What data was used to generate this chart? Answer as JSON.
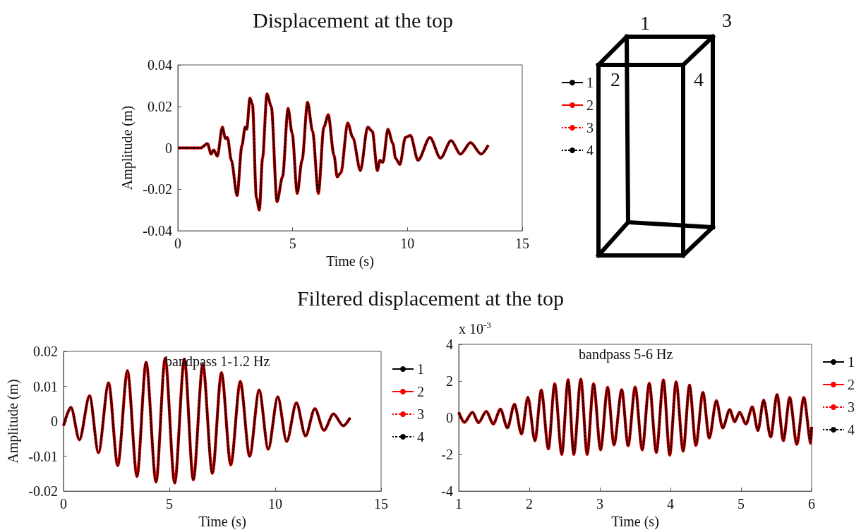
{
  "chart_data": [
    {
      "type": "line",
      "title": "Displacement at the top",
      "xlabel": "Time (s)",
      "ylabel": "Amplitude (m)",
      "xlim": [
        0,
        15
      ],
      "xticks": [
        0,
        5,
        10,
        15
      ],
      "ylim": [
        -0.04,
        0.04
      ],
      "yticks": [
        -0.04,
        -0.02,
        0,
        0.02,
        0.04
      ],
      "legend": "right",
      "grid": false,
      "x": [
        0,
        1.0,
        1.29,
        1.45,
        1.56,
        1.72,
        1.94,
        2.07,
        2.16,
        2.33,
        2.58,
        2.79,
        2.93,
        3.0,
        3.14,
        3.25,
        3.42,
        3.55,
        3.69,
        3.88,
        4.07,
        4.32,
        4.56,
        4.8,
        4.98,
        5.2,
        5.41,
        5.65,
        5.87,
        6.12,
        6.36,
        6.55,
        6.8,
        6.94,
        7.1,
        7.4,
        7.62,
        7.95,
        8.27,
        8.47,
        8.69,
        8.8,
        8.93,
        9.15,
        9.37,
        9.48,
        9.67,
        9.91,
        10.13,
        10.46,
        10.98,
        11.44,
        11.9,
        12.31,
        12.75,
        13.21,
        13.52
      ],
      "series": [
        {
          "name": "1",
          "color": "#000000",
          "line_style": "solid",
          "values": [
            0,
            0,
            0.002,
            -0.003,
            -0.001,
            -0.004,
            0.01,
            0.0045,
            0.005,
            -0.006,
            -0.023,
            0.001,
            0.01,
            0.009,
            0.024,
            0.021,
            -0.024,
            -0.03,
            -0.005,
            0.026,
            0.02,
            -0.026,
            -0.014,
            0.019,
            0.007,
            -0.022,
            -0.006,
            0.022,
            0.008,
            -0.022,
            0.01,
            0.016,
            -0.0035,
            -0.014,
            -0.012,
            0.012,
            0.005,
            -0.011,
            0.01,
            0.008,
            -0.011,
            -0.006,
            -0.007,
            0.009,
            0.002,
            -0.005,
            -0.008,
            0.005,
            0.006,
            -0.006,
            0.005,
            -0.005,
            0.0035,
            -0.003,
            0.0025,
            -0.003,
            0.0013
          ]
        },
        {
          "name": "2",
          "color": "#ff0000",
          "line_style": "solid",
          "values": [
            0,
            0,
            0.002,
            -0.003,
            -0.001,
            -0.004,
            0.01,
            0.0045,
            0.005,
            -0.006,
            -0.023,
            0.001,
            0.01,
            0.009,
            0.024,
            0.021,
            -0.024,
            -0.03,
            -0.005,
            0.026,
            0.02,
            -0.026,
            -0.014,
            0.019,
            0.007,
            -0.022,
            -0.006,
            0.022,
            0.008,
            -0.022,
            0.01,
            0.016,
            -0.0035,
            -0.014,
            -0.012,
            0.012,
            0.005,
            -0.011,
            0.01,
            0.008,
            -0.011,
            -0.006,
            -0.007,
            0.009,
            0.002,
            -0.005,
            -0.008,
            0.005,
            0.006,
            -0.006,
            0.005,
            -0.005,
            0.0035,
            -0.003,
            0.0025,
            -0.003,
            0.0013
          ]
        },
        {
          "name": "3",
          "color": "#ff0000",
          "line_style": "dashed",
          "values": [
            0,
            0,
            0.002,
            -0.003,
            -0.001,
            -0.004,
            0.01,
            0.0045,
            0.005,
            -0.006,
            -0.023,
            0.001,
            0.01,
            0.009,
            0.024,
            0.021,
            -0.024,
            -0.03,
            -0.005,
            0.026,
            0.02,
            -0.026,
            -0.014,
            0.019,
            0.007,
            -0.022,
            -0.006,
            0.022,
            0.008,
            -0.022,
            0.01,
            0.016,
            -0.0035,
            -0.014,
            -0.012,
            0.012,
            0.005,
            -0.011,
            0.01,
            0.008,
            -0.011,
            -0.006,
            -0.007,
            0.009,
            0.002,
            -0.005,
            -0.008,
            0.005,
            0.006,
            -0.006,
            0.005,
            -0.005,
            0.0035,
            -0.003,
            0.0025,
            -0.003,
            0.0013
          ]
        },
        {
          "name": "4",
          "color": "#000000",
          "line_style": "dashed",
          "values": [
            0,
            0,
            0.002,
            -0.003,
            -0.001,
            -0.004,
            0.01,
            0.0045,
            0.005,
            -0.006,
            -0.023,
            0.001,
            0.01,
            0.009,
            0.024,
            0.021,
            -0.024,
            -0.03,
            -0.005,
            0.026,
            0.02,
            -0.026,
            -0.014,
            0.019,
            0.007,
            -0.022,
            -0.006,
            0.022,
            0.008,
            -0.022,
            0.01,
            0.016,
            -0.0035,
            -0.014,
            -0.012,
            0.012,
            0.005,
            -0.011,
            0.01,
            0.008,
            -0.011,
            -0.006,
            -0.007,
            0.009,
            0.002,
            -0.005,
            -0.008,
            0.005,
            0.006,
            -0.006,
            0.005,
            -0.005,
            0.0035,
            -0.003,
            0.0025,
            -0.003,
            0.0013
          ]
        }
      ]
    },
    {
      "type": "line",
      "title": "Filtered displacement at the top",
      "xlabel": "Time (s)",
      "ylabel": "Amplitude (m)",
      "xlim": [
        0,
        15
      ],
      "xticks": [
        0,
        5,
        10,
        15
      ],
      "ylim": [
        -0.02,
        0.02
      ],
      "yticks": [
        -0.02,
        -0.01,
        0,
        0.01,
        0.02
      ],
      "legend": "right",
      "grid": false,
      "annotations": [
        "bandpass 1-1.2 Hz"
      ],
      "x": [
        0,
        0.35,
        0.75,
        1.23,
        1.65,
        2.13,
        2.56,
        3.02,
        3.47,
        3.9,
        4.37,
        4.8,
        5.25,
        5.71,
        6.13,
        6.58,
        7.03,
        7.46,
        7.9,
        8.35,
        8.79,
        9.24,
        9.67,
        10.12,
        10.54,
        11.0,
        11.43,
        11.87,
        12.3,
        12.75,
        13.21,
        13.54
      ],
      "series": [
        {
          "name": "1",
          "color": "#000000",
          "line_style": "solid",
          "values": [
            -0.0013,
            0.004,
            -0.0053,
            0.0073,
            -0.009,
            0.011,
            -0.0127,
            0.0145,
            -0.0158,
            0.0169,
            -0.0174,
            0.018,
            -0.0177,
            0.0178,
            -0.0168,
            0.0163,
            -0.0149,
            0.0139,
            -0.0125,
            0.0114,
            -0.01,
            0.0089,
            -0.008,
            0.007,
            -0.0058,
            0.0053,
            -0.0042,
            0.0036,
            -0.0026,
            0.0021,
            -0.0013,
            0.001
          ]
        },
        {
          "name": "2",
          "color": "#ff0000",
          "line_style": "solid",
          "values": [
            -0.0013,
            0.004,
            -0.0053,
            0.0073,
            -0.009,
            0.011,
            -0.0127,
            0.0145,
            -0.0158,
            0.0169,
            -0.0174,
            0.018,
            -0.0177,
            0.0178,
            -0.0168,
            0.0163,
            -0.0149,
            0.0139,
            -0.0125,
            0.0114,
            -0.01,
            0.0089,
            -0.008,
            0.007,
            -0.0058,
            0.0053,
            -0.0042,
            0.0036,
            -0.0026,
            0.0021,
            -0.0013,
            0.001
          ]
        },
        {
          "name": "3",
          "color": "#ff0000",
          "line_style": "dashed",
          "values": [
            -0.0013,
            0.004,
            -0.0053,
            0.0073,
            -0.009,
            0.011,
            -0.0127,
            0.0145,
            -0.0158,
            0.0169,
            -0.0174,
            0.018,
            -0.0177,
            0.0178,
            -0.0168,
            0.0163,
            -0.0149,
            0.0139,
            -0.0125,
            0.0114,
            -0.01,
            0.0089,
            -0.008,
            0.007,
            -0.0058,
            0.0053,
            -0.0042,
            0.0036,
            -0.0026,
            0.0021,
            -0.0013,
            0.001
          ]
        },
        {
          "name": "4",
          "color": "#000000",
          "line_style": "dashed",
          "values": [
            -0.0013,
            0.004,
            -0.0053,
            0.0073,
            -0.009,
            0.011,
            -0.0127,
            0.0145,
            -0.0158,
            0.0169,
            -0.0174,
            0.018,
            -0.0177,
            0.0178,
            -0.0168,
            0.0163,
            -0.0149,
            0.0139,
            -0.0125,
            0.0114,
            -0.01,
            0.0089,
            -0.008,
            0.007,
            -0.0058,
            0.0053,
            -0.0042,
            0.0036,
            -0.0026,
            0.0021,
            -0.0013,
            0.001
          ]
        }
      ]
    },
    {
      "type": "line",
      "xlabel": "Time (s)",
      "xlim": [
        1,
        6
      ],
      "xticks": [
        1,
        2,
        3,
        4,
        5,
        6
      ],
      "ylim": [
        -4,
        4
      ],
      "yticks": [
        -4,
        -2,
        0,
        2,
        4
      ],
      "legend": "right",
      "grid": false,
      "annotations": [
        "bandpass 5-6 Hz",
        "x 10$^{-3}$"
      ],
      "x": [
        1.0,
        1.08,
        1.195,
        1.28,
        1.39,
        1.49,
        1.59,
        1.69,
        1.79,
        1.89,
        1.98,
        2.08,
        2.17,
        2.27,
        2.36,
        2.46,
        2.55,
        2.63,
        2.73,
        2.82,
        2.91,
        3.01,
        3.11,
        3.2,
        3.31,
        3.4,
        3.5,
        3.6,
        3.7,
        3.8,
        3.9,
        3.99,
        4.08,
        4.18,
        4.27,
        4.36,
        4.46,
        4.55,
        4.65,
        4.74,
        4.84,
        4.91,
        4.98,
        5.07,
        5.16,
        5.24,
        5.32,
        5.42,
        5.51,
        5.6,
        5.69,
        5.79,
        5.89,
        5.99,
        6.0
      ],
      "series": [
        {
          "name": "1",
          "color": "#000000",
          "line_style": "solid",
          "values": [
            0.3,
            -0.25,
            0.3,
            -0.27,
            0.34,
            -0.34,
            0.47,
            -0.55,
            0.74,
            -0.89,
            1.11,
            -1.26,
            1.51,
            -1.7,
            1.85,
            -2.0,
            2.07,
            -2.0,
            2.1,
            -2.0,
            1.85,
            -1.75,
            1.66,
            -1.48,
            1.53,
            -1.53,
            1.67,
            -1.75,
            1.88,
            -1.9,
            2.06,
            -2.04,
            1.96,
            -1.82,
            1.78,
            -1.51,
            1.38,
            -1.11,
            0.93,
            -0.56,
            0.44,
            -0.22,
            0.3,
            -0.34,
            0.59,
            -0.7,
            0.96,
            -1.05,
            1.26,
            -1.25,
            1.1,
            -1.45,
            1.1,
            -1.4,
            -0.5
          ]
        },
        {
          "name": "2",
          "color": "#ff0000",
          "line_style": "solid",
          "values": [
            0.3,
            -0.25,
            0.3,
            -0.27,
            0.34,
            -0.34,
            0.47,
            -0.55,
            0.74,
            -0.89,
            1.11,
            -1.26,
            1.51,
            -1.7,
            1.85,
            -2.0,
            2.07,
            -2.0,
            2.1,
            -2.0,
            1.85,
            -1.75,
            1.66,
            -1.48,
            1.53,
            -1.53,
            1.67,
            -1.75,
            1.88,
            -1.9,
            2.06,
            -2.04,
            1.96,
            -1.82,
            1.78,
            -1.51,
            1.38,
            -1.11,
            0.93,
            -0.56,
            0.44,
            -0.22,
            0.3,
            -0.34,
            0.59,
            -0.7,
            0.96,
            -1.05,
            1.26,
            -1.25,
            1.1,
            -1.45,
            1.1,
            -1.4,
            -0.5
          ]
        },
        {
          "name": "3",
          "color": "#ff0000",
          "line_style": "dashed",
          "values": [
            0.3,
            -0.25,
            0.3,
            -0.27,
            0.34,
            -0.34,
            0.47,
            -0.55,
            0.74,
            -0.89,
            1.11,
            -1.26,
            1.51,
            -1.7,
            1.85,
            -2.0,
            2.07,
            -2.0,
            2.1,
            -2.0,
            1.85,
            -1.75,
            1.66,
            -1.48,
            1.53,
            -1.53,
            1.67,
            -1.75,
            1.88,
            -1.9,
            2.06,
            -2.04,
            1.96,
            -1.82,
            1.78,
            -1.51,
            1.38,
            -1.11,
            0.93,
            -0.56,
            0.44,
            -0.22,
            0.3,
            -0.34,
            0.59,
            -0.7,
            0.96,
            -1.05,
            1.26,
            -1.25,
            1.1,
            -1.45,
            1.1,
            -1.4,
            -0.5
          ]
        },
        {
          "name": "4",
          "color": "#000000",
          "line_style": "dashed",
          "values": [
            0.3,
            -0.25,
            0.3,
            -0.27,
            0.34,
            -0.34,
            0.47,
            -0.55,
            0.74,
            -0.89,
            1.11,
            -1.26,
            1.51,
            -1.7,
            1.85,
            -2.0,
            2.07,
            -2.0,
            2.1,
            -2.0,
            1.85,
            -1.75,
            1.66,
            -1.48,
            1.53,
            -1.53,
            1.67,
            -1.75,
            1.88,
            -1.9,
            2.06,
            -2.04,
            1.96,
            -1.82,
            1.78,
            -1.51,
            1.38,
            -1.11,
            0.93,
            -0.56,
            0.44,
            -0.22,
            0.3,
            -0.34,
            0.59,
            -0.7,
            0.96,
            -1.05,
            1.26,
            -1.25,
            1.1,
            -1.45,
            1.1,
            -1.4,
            -0.5
          ]
        }
      ]
    },
    {
      "type": "other",
      "annotations": [
        "1",
        "3",
        "2",
        "4"
      ]
    }
  ]
}
